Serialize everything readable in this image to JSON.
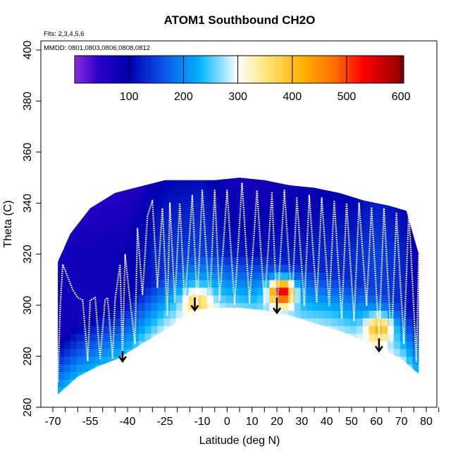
{
  "chart_data": {
    "type": "heatmap",
    "title": "ATOM1 Southbound CH2O",
    "annotations": {
      "flights": "Flts: 2,3,4,5,6",
      "dates": "MMDD: 0801,0803,0806,0808,0812"
    },
    "xlabel": "Latitude (deg N)",
    "ylabel": "Theta (C)",
    "xlim": [
      -72,
      86
    ],
    "ylim": [
      260,
      405
    ],
    "x_ticks": [
      -70,
      -55,
      -40,
      -25,
      -10,
      0,
      10,
      20,
      30,
      40,
      50,
      60,
      70,
      80
    ],
    "x_tick_labels": [
      "-70",
      "-55",
      "-40",
      "-25",
      "-10",
      "0",
      "10",
      "20",
      "30",
      "40",
      "50",
      "60",
      "70",
      "80"
    ],
    "x_minor_ticks": [
      -65,
      -60,
      -50,
      -45,
      -35,
      -30,
      -20,
      -15,
      -5,
      5,
      15,
      25,
      35,
      45,
      55,
      65,
      75,
      85
    ],
    "y_ticks": [
      260,
      280,
      300,
      320,
      340,
      360,
      380,
      400
    ],
    "y_tick_labels": [
      "260",
      "280",
      "300",
      "320",
      "340",
      "360",
      "380",
      "400"
    ],
    "colorbar": {
      "range": [
        0,
        605
      ],
      "ticks": [
        100,
        200,
        300,
        400,
        500,
        600
      ],
      "tick_labels": [
        "100",
        "200",
        "300",
        "400",
        "500",
        "600"
      ],
      "stops": [
        {
          "v": 0,
          "c": "#8a2be2"
        },
        {
          "v": 45,
          "c": "#2a00c8"
        },
        {
          "v": 100,
          "c": "#0000b0"
        },
        {
          "v": 160,
          "c": "#0a50e8"
        },
        {
          "v": 230,
          "c": "#00b4ff"
        },
        {
          "v": 300,
          "c": "#ffffff"
        },
        {
          "v": 360,
          "c": "#ffe066"
        },
        {
          "v": 420,
          "c": "#ffb000"
        },
        {
          "v": 480,
          "c": "#ff6a00"
        },
        {
          "v": 530,
          "c": "#ff0000"
        },
        {
          "v": 605,
          "c": "#8b0000"
        }
      ]
    },
    "floor": [
      [
        -68,
        265
      ],
      [
        -60,
        272
      ],
      [
        -52,
        276
      ],
      [
        -44,
        279
      ],
      [
        -34,
        285
      ],
      [
        -22,
        292
      ],
      [
        -15,
        298
      ],
      [
        -5,
        299
      ],
      [
        5,
        299
      ],
      [
        15,
        298
      ],
      [
        25,
        296
      ],
      [
        35,
        293
      ],
      [
        45,
        290
      ],
      [
        55,
        286
      ],
      [
        62,
        283
      ],
      [
        70,
        279
      ],
      [
        77,
        273
      ]
    ],
    "ceiling": [
      [
        -68,
        317
      ],
      [
        -63,
        328
      ],
      [
        -55,
        338
      ],
      [
        -45,
        344
      ],
      [
        -37,
        346
      ],
      [
        -25,
        349
      ],
      [
        -15,
        349
      ],
      [
        -5,
        349
      ],
      [
        5,
        350
      ],
      [
        15,
        349
      ],
      [
        25,
        347
      ],
      [
        35,
        346
      ],
      [
        45,
        344
      ],
      [
        55,
        341
      ],
      [
        65,
        339
      ],
      [
        72,
        337
      ],
      [
        77,
        320
      ]
    ],
    "background_profile": [
      [
        -68,
        80
      ],
      [
        -55,
        80
      ],
      [
        -40,
        90
      ],
      [
        -25,
        140
      ],
      [
        -10,
        150
      ],
      [
        0,
        120
      ],
      [
        10,
        110
      ],
      [
        20,
        120
      ],
      [
        30,
        120
      ],
      [
        40,
        130
      ],
      [
        50,
        130
      ],
      [
        60,
        150
      ],
      [
        70,
        130
      ],
      [
        77,
        80
      ]
    ],
    "hotspots": [
      {
        "lat": -12,
        "theta": 301,
        "value": 380
      },
      {
        "lat": 22,
        "theta": 305,
        "value": 560
      },
      {
        "lat": 61,
        "theta": 291,
        "value": 420
      }
    ],
    "arrows": [
      {
        "lat": -13,
        "theta_from": 303,
        "theta_to": 298
      },
      {
        "lat": 20,
        "theta_from": 303,
        "theta_to": 297
      },
      {
        "lat": -42,
        "theta_from": 282,
        "theta_to": 278
      },
      {
        "lat": 61,
        "theta_from": 287,
        "theta_to": 282
      }
    ],
    "flight_track": [
      [
        -68,
        270
      ],
      [
        -67,
        300
      ],
      [
        -66,
        316
      ],
      [
        -62,
        306
      ],
      [
        -60,
        303
      ],
      [
        -58,
        302
      ],
      [
        -56,
        278
      ],
      [
        -55,
        302
      ],
      [
        -53,
        303
      ],
      [
        -51,
        279
      ],
      [
        -49,
        302
      ],
      [
        -48,
        303
      ],
      [
        -46,
        279
      ],
      [
        -45,
        302
      ],
      [
        -43,
        316
      ],
      [
        -42,
        280
      ],
      [
        -41,
        320
      ],
      [
        -39,
        302
      ],
      [
        -37,
        285
      ],
      [
        -36,
        330
      ],
      [
        -34,
        304
      ],
      [
        -32,
        335
      ],
      [
        -30,
        341
      ],
      [
        -28,
        307
      ],
      [
        -26,
        338
      ],
      [
        -24,
        296
      ],
      [
        -23,
        340
      ],
      [
        -21,
        301
      ],
      [
        -19,
        340
      ],
      [
        -17,
        300
      ],
      [
        -14,
        343
      ],
      [
        -12,
        300
      ],
      [
        -10,
        345
      ],
      [
        -7,
        300
      ],
      [
        -5,
        345
      ],
      [
        -3,
        302
      ],
      [
        0,
        345
      ],
      [
        3,
        300
      ],
      [
        6,
        348
      ],
      [
        9,
        301
      ],
      [
        12,
        345
      ],
      [
        15,
        300
      ],
      [
        18,
        344
      ],
      [
        20,
        297
      ],
      [
        23,
        345
      ],
      [
        26,
        300
      ],
      [
        28,
        342
      ],
      [
        31,
        300
      ],
      [
        33,
        343
      ],
      [
        36,
        301
      ],
      [
        38,
        342
      ],
      [
        41,
        300
      ],
      [
        43,
        341
      ],
      [
        46,
        295
      ],
      [
        48,
        340
      ],
      [
        51,
        294
      ],
      [
        53,
        340
      ],
      [
        56,
        300
      ],
      [
        58,
        338
      ],
      [
        61,
        287
      ],
      [
        63,
        338
      ],
      [
        66,
        285
      ],
      [
        68,
        336
      ],
      [
        71,
        285
      ],
      [
        73,
        337
      ],
      [
        76,
        278
      ],
      [
        77,
        320
      ]
    ]
  }
}
